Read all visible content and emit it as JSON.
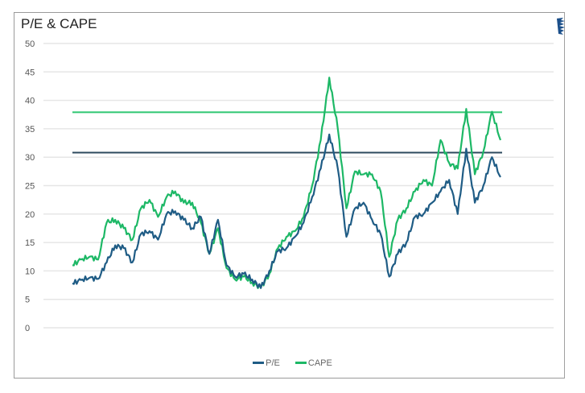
{
  "chart_data": {
    "type": "line",
    "title": "P/E & CAPE",
    "xlabel": "",
    "ylabel": "",
    "ylim": [
      0,
      50
    ],
    "yticks": [
      0,
      5,
      10,
      15,
      20,
      25,
      30,
      35,
      40,
      45,
      50
    ],
    "grid": true,
    "legend_position": "bottom",
    "legend": [
      "P/E",
      "CAPE"
    ],
    "colors": {
      "pe": "#1f5c85",
      "cape": "#1db866",
      "pe_avg": "#2d4a5e",
      "cape_avg": "#2ec772"
    },
    "x_index": [
      0,
      2,
      4,
      6,
      8,
      10,
      12,
      14,
      16,
      18,
      20,
      22,
      24,
      26,
      28,
      30,
      32,
      34,
      36,
      38,
      40,
      42,
      44,
      46,
      48,
      50,
      52,
      54,
      56,
      58,
      60,
      62,
      64,
      66,
      68,
      70,
      72,
      74,
      76,
      78,
      80,
      82,
      84,
      86,
      88,
      90,
      92,
      94,
      96,
      98,
      100
    ],
    "series": [
      {
        "name": "P/E",
        "values": [
          7.8,
          8.4,
          8.8,
          8.6,
          11.5,
          14.5,
          14.0,
          11.5,
          16.5,
          17.0,
          15.5,
          20.0,
          20.5,
          19.0,
          17.5,
          19.5,
          13.0,
          19.0,
          11.0,
          9.0,
          9.5,
          8.5,
          7.0,
          10.0,
          13.5,
          14.0,
          16.0,
          18.5,
          23.0,
          28.0,
          34.0,
          28.0,
          16.0,
          21.0,
          22.0,
          19.0,
          16.5,
          9.0,
          13.0,
          15.0,
          19.5,
          20.0,
          22.0,
          24.0,
          26.0,
          20.0,
          31.5,
          22.0,
          25.0,
          30.0,
          26.5
        ]
      },
      {
        "name": "CAPE",
        "values": [
          11.0,
          12.0,
          12.5,
          12.0,
          18.5,
          19.0,
          17.5,
          15.5,
          21.0,
          22.5,
          19.5,
          23.0,
          24.0,
          22.0,
          22.0,
          18.5,
          13.0,
          17.5,
          10.5,
          8.5,
          9.0,
          8.0,
          7.0,
          9.5,
          14.0,
          16.0,
          17.0,
          19.5,
          25.0,
          33.0,
          44.0,
          35.0,
          21.0,
          27.5,
          27.0,
          27.0,
          24.0,
          12.5,
          19.0,
          21.0,
          24.0,
          26.0,
          25.0,
          33.0,
          29.0,
          28.0,
          38.5,
          27.0,
          31.0,
          38.0,
          33.0
        ]
      },
      {
        "name": "P/E average",
        "values_constant": 30.8
      },
      {
        "name": "CAPE average",
        "values_constant": 37.9
      }
    ]
  },
  "header": {
    "title": "P/E & CAPE"
  },
  "legend": {
    "items": [
      {
        "label": "P/E",
        "color": "#1f5c85"
      },
      {
        "label": "CAPE",
        "color": "#1db866"
      }
    ]
  },
  "yaxis": {
    "labels": [
      "50",
      "45",
      "40",
      "35",
      "30",
      "25",
      "20",
      "15",
      "10",
      "5",
      "0"
    ]
  }
}
